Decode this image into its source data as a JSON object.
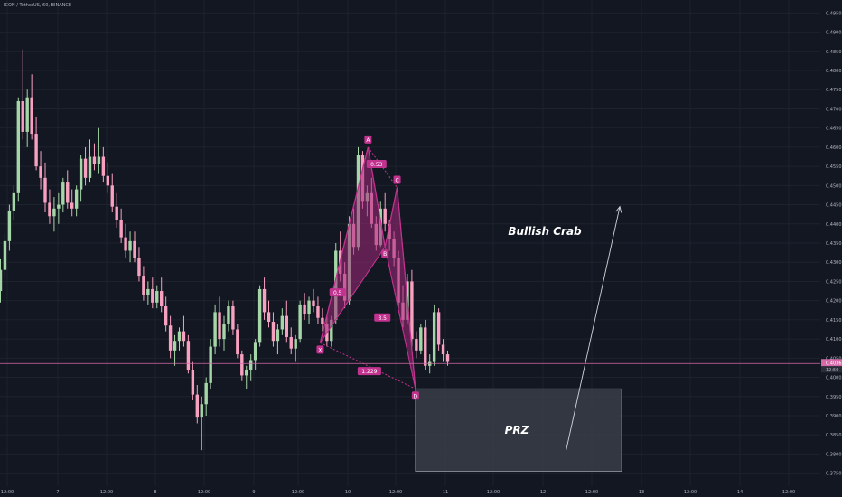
{
  "symbol_title": "ICON / TetherUS, 60, BINANCE",
  "colors": {
    "background": "#131722",
    "grid": "#1e222d",
    "up": "#a5d6a7",
    "down": "#f8a0c0",
    "pattern": "#c2338f",
    "pattern_fill": "#a0287a",
    "price_line": "#d46aa8",
    "prz_fill": "#3a3d46",
    "prz_stroke": "#9598a1",
    "axis_text": "#b2b5be"
  },
  "chart_data": {
    "type": "candlestick",
    "yaxis": {
      "ticks": [
        "0.4950",
        "0.4900",
        "0.4850",
        "0.4800",
        "0.4750",
        "0.4700",
        "0.4650",
        "0.4600",
        "0.4550",
        "0.4500",
        "0.4450",
        "0.4400",
        "0.4350",
        "0.4300",
        "0.4250",
        "0.4200",
        "0.4150",
        "0.4100",
        "0.4050",
        "0.4000",
        "0.3950",
        "0.3900",
        "0.3850",
        "0.3800",
        "0.3750"
      ],
      "range": [
        0.3735,
        0.4965
      ]
    },
    "xaxis": {
      "ticks": [
        "12:00",
        "7",
        "12:00",
        "8",
        "12:00",
        "9",
        "12:00",
        "10",
        "12:00",
        "11",
        "12:00",
        "12",
        "12:00",
        "13",
        "12:00",
        "14",
        "12:00"
      ]
    },
    "current_price": {
      "label": "0.4036",
      "value": 0.4036,
      "time_label": "12:50"
    },
    "candles": [
      [
        0.4225,
        0.4308,
        0.4195,
        0.428
      ],
      [
        0.428,
        0.4375,
        0.426,
        0.4355
      ],
      [
        0.4355,
        0.445,
        0.433,
        0.4435
      ],
      [
        0.4435,
        0.45,
        0.441,
        0.448
      ],
      [
        0.448,
        0.473,
        0.446,
        0.472
      ],
      [
        0.472,
        0.4855,
        0.462,
        0.464
      ],
      [
        0.464,
        0.475,
        0.46,
        0.473
      ],
      [
        0.473,
        0.479,
        0.462,
        0.4635
      ],
      [
        0.4635,
        0.468,
        0.454,
        0.455
      ],
      [
        0.455,
        0.459,
        0.449,
        0.452
      ],
      [
        0.452,
        0.456,
        0.443,
        0.4455
      ],
      [
        0.4455,
        0.449,
        0.44,
        0.442
      ],
      [
        0.442,
        0.447,
        0.438,
        0.444
      ],
      [
        0.444,
        0.448,
        0.44,
        0.445
      ],
      [
        0.445,
        0.452,
        0.443,
        0.451
      ],
      [
        0.451,
        0.454,
        0.444,
        0.4455
      ],
      [
        0.4455,
        0.449,
        0.442,
        0.444
      ],
      [
        0.444,
        0.45,
        0.442,
        0.449
      ],
      [
        0.449,
        0.458,
        0.446,
        0.457
      ],
      [
        0.457,
        0.46,
        0.45,
        0.452
      ],
      [
        0.452,
        0.462,
        0.451,
        0.4575
      ],
      [
        0.4575,
        0.461,
        0.454,
        0.4555
      ],
      [
        0.4555,
        0.465,
        0.453,
        0.4575
      ],
      [
        0.4575,
        0.46,
        0.451,
        0.4525
      ],
      [
        0.4525,
        0.456,
        0.448,
        0.45
      ],
      [
        0.45,
        0.453,
        0.443,
        0.4445
      ],
      [
        0.4445,
        0.448,
        0.439,
        0.441
      ],
      [
        0.441,
        0.444,
        0.435,
        0.4365
      ],
      [
        0.4365,
        0.44,
        0.431,
        0.433
      ],
      [
        0.433,
        0.438,
        0.43,
        0.4355
      ],
      [
        0.4355,
        0.438,
        0.43,
        0.431
      ],
      [
        0.431,
        0.434,
        0.425,
        0.4265
      ],
      [
        0.4265,
        0.429,
        0.42,
        0.4215
      ],
      [
        0.4215,
        0.425,
        0.419,
        0.423
      ],
      [
        0.423,
        0.426,
        0.418,
        0.4195
      ],
      [
        0.4195,
        0.424,
        0.418,
        0.4225
      ],
      [
        0.4225,
        0.426,
        0.417,
        0.4185
      ],
      [
        0.4185,
        0.421,
        0.412,
        0.4135
      ],
      [
        0.4135,
        0.416,
        0.405,
        0.407
      ],
      [
        0.407,
        0.411,
        0.403,
        0.4095
      ],
      [
        0.4095,
        0.413,
        0.407,
        0.412
      ],
      [
        0.412,
        0.416,
        0.408,
        0.4095
      ],
      [
        0.4095,
        0.411,
        0.401,
        0.402
      ],
      [
        0.402,
        0.404,
        0.394,
        0.3955
      ],
      [
        0.3955,
        0.398,
        0.388,
        0.3895
      ],
      [
        0.3895,
        0.395,
        0.381,
        0.393
      ],
      [
        0.393,
        0.4,
        0.39,
        0.3985
      ],
      [
        0.3985,
        0.41,
        0.397,
        0.408
      ],
      [
        0.408,
        0.419,
        0.406,
        0.417
      ],
      [
        0.417,
        0.421,
        0.408,
        0.41
      ],
      [
        0.41,
        0.416,
        0.407,
        0.414
      ],
      [
        0.414,
        0.42,
        0.412,
        0.4185
      ],
      [
        0.4185,
        0.42,
        0.411,
        0.4125
      ],
      [
        0.4125,
        0.414,
        0.405,
        0.406
      ],
      [
        0.406,
        0.407,
        0.399,
        0.4005
      ],
      [
        0.4005,
        0.403,
        0.397,
        0.402
      ],
      [
        0.402,
        0.406,
        0.399,
        0.4045
      ],
      [
        0.4045,
        0.41,
        0.402,
        0.409
      ],
      [
        0.409,
        0.424,
        0.408,
        0.423
      ],
      [
        0.423,
        0.426,
        0.415,
        0.417
      ],
      [
        0.417,
        0.42,
        0.413,
        0.4145
      ],
      [
        0.4145,
        0.417,
        0.408,
        0.4095
      ],
      [
        0.4095,
        0.414,
        0.406,
        0.4125
      ],
      [
        0.4125,
        0.418,
        0.411,
        0.416
      ],
      [
        0.416,
        0.42,
        0.409,
        0.4105
      ],
      [
        0.4105,
        0.413,
        0.406,
        0.4075
      ],
      [
        0.4075,
        0.411,
        0.404,
        0.41
      ],
      [
        0.41,
        0.42,
        0.409,
        0.419
      ],
      [
        0.419,
        0.422,
        0.415,
        0.4165
      ],
      [
        0.4165,
        0.421,
        0.414,
        0.42
      ],
      [
        0.42,
        0.423,
        0.417,
        0.4185
      ],
      [
        0.4185,
        0.421,
        0.414,
        0.4155
      ],
      [
        0.4155,
        0.418,
        0.412,
        0.414
      ],
      [
        0.414,
        0.416,
        0.408,
        0.4095
      ],
      [
        0.4095,
        0.416,
        0.408,
        0.415
      ],
      [
        0.415,
        0.435,
        0.414,
        0.433
      ],
      [
        0.433,
        0.438,
        0.425,
        0.427
      ],
      [
        0.427,
        0.43,
        0.418,
        0.42
      ],
      [
        0.42,
        0.442,
        0.419,
        0.44
      ],
      [
        0.44,
        0.444,
        0.432,
        0.434
      ],
      [
        0.434,
        0.46,
        0.433,
        0.458
      ],
      [
        0.458,
        0.459,
        0.444,
        0.446
      ],
      [
        0.446,
        0.45,
        0.442,
        0.448
      ],
      [
        0.448,
        0.452,
        0.439,
        0.44
      ],
      [
        0.44,
        0.442,
        0.433,
        0.4345
      ],
      [
        0.4345,
        0.446,
        0.434,
        0.444
      ],
      [
        0.444,
        0.448,
        0.438,
        0.44
      ],
      [
        0.44,
        0.441,
        0.433,
        0.436
      ],
      [
        0.436,
        0.438,
        0.429,
        0.431
      ],
      [
        0.431,
        0.433,
        0.418,
        0.4195
      ],
      [
        0.4195,
        0.424,
        0.413,
        0.415
      ],
      [
        0.415,
        0.427,
        0.414,
        0.425
      ],
      [
        0.425,
        0.428,
        0.408,
        0.41
      ],
      [
        0.41,
        0.412,
        0.405,
        0.407
      ],
      [
        0.407,
        0.414,
        0.406,
        0.413
      ],
      [
        0.413,
        0.415,
        0.402,
        0.403
      ],
      [
        0.403,
        0.406,
        0.401,
        0.404
      ],
      [
        0.404,
        0.419,
        0.403,
        0.417
      ],
      [
        0.417,
        0.418,
        0.407,
        0.4085
      ],
      [
        0.4085,
        0.41,
        0.404,
        0.406
      ],
      [
        0.406,
        0.407,
        0.403,
        0.404
      ]
    ],
    "harmonic_pattern": {
      "name": "Bullish Crab",
      "points": [
        {
          "label": "X",
          "x": 71.5,
          "y": 0.409
        },
        {
          "label": "A",
          "x": 82.2,
          "y": 0.46
        },
        {
          "label": "B",
          "x": 86.0,
          "y": 0.434
        },
        {
          "label": "C",
          "x": 88.7,
          "y": 0.4495
        },
        {
          "label": "D",
          "x": 92.8,
          "y": 0.397
        }
      ],
      "ratios": [
        {
          "label": "0.53",
          "x": 84.1,
          "y": 0.4555
        },
        {
          "label": "0.5",
          "x": 75.4,
          "y": 0.422
        },
        {
          "label": "3.5",
          "x": 85.4,
          "y": 0.4155
        },
        {
          "label": "1.229",
          "x": 82.5,
          "y": 0.4015
        }
      ]
    },
    "prz": {
      "label": "PRZ",
      "x_from": 92.8,
      "x_to": 138.9,
      "y_top": 0.397,
      "y_bottom": 0.3755
    },
    "projection_arrow": {
      "x_from": 126.5,
      "y_from": 0.381,
      "x_to": 138.5,
      "y_to": 0.4445
    }
  }
}
